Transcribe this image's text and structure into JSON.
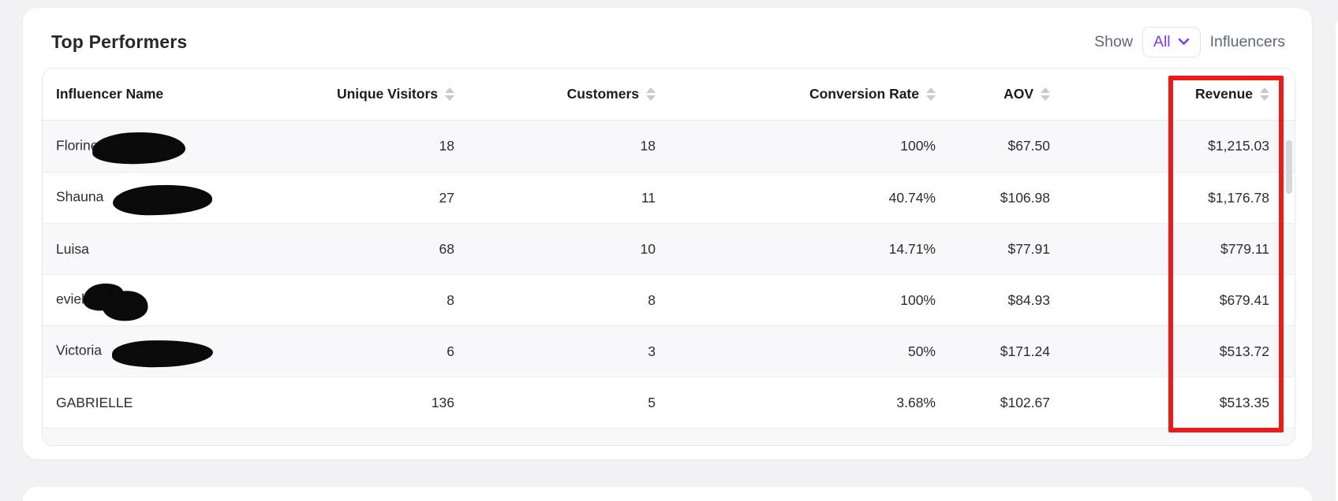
{
  "colors": {
    "page_background": "#f2f2f4",
    "card_background": "#ffffff",
    "accent_purple": "#7c3aed",
    "annotation_red": "#ea1b1b",
    "row_stripe": "#f8f8fa",
    "text_primary": "#2c2c33",
    "text_muted": "#5e6879",
    "sort_icon": "#c9c9d1"
  },
  "card": {
    "title": "Top Performers",
    "show_label": "Show",
    "show_value": "All",
    "show_suffix": "Influencers",
    "chevron_icon": "chevron-down"
  },
  "table": {
    "columns": [
      {
        "key": "name",
        "label": "Influencer Name",
        "sortable": false,
        "align": "left"
      },
      {
        "key": "visitors",
        "label": "Unique Visitors",
        "sortable": true,
        "align": "right"
      },
      {
        "key": "customers",
        "label": "Customers",
        "sortable": true,
        "align": "right"
      },
      {
        "key": "conversion",
        "label": "Conversion Rate",
        "sortable": true,
        "align": "right"
      },
      {
        "key": "aov",
        "label": "AOV",
        "sortable": true,
        "align": "right"
      },
      {
        "key": "revenue",
        "label": "Revenue",
        "sortable": true,
        "align": "right"
      }
    ],
    "rows": [
      {
        "name": "Florine",
        "redacted": true,
        "redact_size": "lg",
        "visitors": "18",
        "customers": "18",
        "conversion": "100%",
        "aov": "$67.50",
        "revenue": "$1,215.03"
      },
      {
        "name": "Shauna",
        "redacted": true,
        "redact_size": "lg2",
        "visitors": "27",
        "customers": "11",
        "conversion": "40.74%",
        "aov": "$106.98",
        "revenue": "$1,176.78"
      },
      {
        "name": "Luisa",
        "redacted": false,
        "redact_size": "",
        "visitors": "68",
        "customers": "10",
        "conversion": "14.71%",
        "aov": "$77.91",
        "revenue": "$779.11"
      },
      {
        "name": "eviek",
        "redacted": true,
        "redact_size": "sm",
        "visitors": "8",
        "customers": "8",
        "conversion": "100%",
        "aov": "$84.93",
        "revenue": "$679.41"
      },
      {
        "name": "Victoria",
        "redacted": true,
        "redact_size": "md",
        "visitors": "6",
        "customers": "3",
        "conversion": "50%",
        "aov": "$171.24",
        "revenue": "$513.72"
      },
      {
        "name": "GABRIELLE",
        "redacted": false,
        "redact_size": "",
        "visitors": "136",
        "customers": "5",
        "conversion": "3.68%",
        "aov": "$102.67",
        "revenue": "$513.35"
      }
    ],
    "has_partial_next_row": true
  },
  "annotation": {
    "shape": "red-rectangle",
    "target": "revenue-column"
  }
}
